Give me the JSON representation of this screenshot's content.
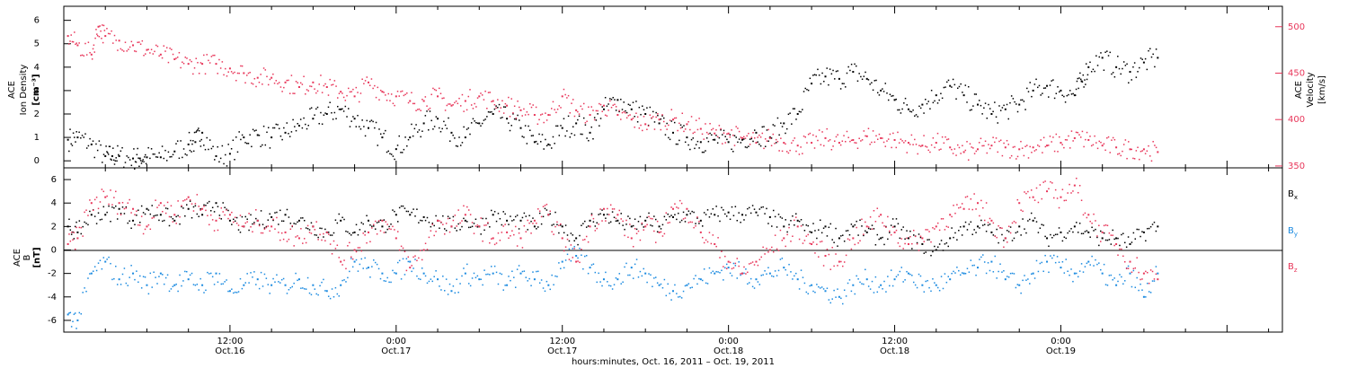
{
  "chart_data": [
    {
      "type": "scatter",
      "panel": "top",
      "ylabel_left": [
        "ACE",
        "Ion Density",
        "[cm⁻³]"
      ],
      "ylabel_right": [
        "ACE",
        "Velocity",
        "[km/s]"
      ],
      "yticks_left": [
        "0",
        "1",
        "2",
        "3",
        "4",
        "5",
        "6"
      ],
      "yticks_right": [
        "350",
        "400",
        "450",
        "500"
      ],
      "ylim_left": [
        -0.3,
        6.6
      ],
      "ylim_right": [
        348,
        522
      ],
      "series": [
        {
          "color": "#000000",
          "axis": "left",
          "x": [
            0.3,
            1.0,
            2.0,
            3.0,
            3.5,
            4.0,
            5.0,
            5.5,
            6.0,
            7.0,
            8.0,
            9.0,
            9.5,
            10.0,
            11.0,
            12.0,
            13.0,
            14.0,
            15.0,
            16.0,
            17.0,
            18.0,
            19.0,
            20.0,
            21.0,
            22.0,
            23.0,
            24.0,
            25.0,
            26.0,
            27.0,
            28.0,
            29.0,
            30.0,
            31.0,
            32.0,
            33.0,
            34.0,
            35.0,
            36.0,
            37.0,
            38.0,
            39.0,
            40.0,
            41.0,
            42.0,
            43.0,
            44.0,
            45.0,
            46.0,
            47.0,
            48.0,
            49.0,
            50.0,
            51.0,
            52.0,
            53.0,
            54.0,
            55.0,
            56.0,
            57.0,
            58.0,
            59.0,
            60.0,
            61.0,
            62.0,
            63.0,
            64.0,
            65.0,
            66.0,
            67.0,
            68.0,
            69.0,
            70.0,
            71.0,
            72.0,
            73.0,
            73.5,
            74.0,
            75.0,
            76.0,
            77.0,
            78.0,
            79.0
          ],
          "y": [
            0.9,
            1.0,
            0.7,
            0.2,
            0.2,
            0.2,
            0.1,
            0.1,
            0.15,
            0.15,
            0.4,
            0.7,
            0.8,
            1.2,
            0.2,
            0.3,
            1.0,
            1.1,
            1.0,
            1.2,
            1.5,
            1.8,
            2.0,
            2.2,
            1.8,
            1.4,
            1.0,
            0.5,
            1.0,
            1.6,
            1.8,
            1.2,
            1.0,
            1.6,
            2.0,
            1.8,
            1.4,
            0.8,
            0.7,
            1.4,
            1.6,
            1.2,
            2.2,
            2.6,
            2.2,
            2.0,
            1.6,
            1.2,
            1.0,
            0.8,
            0.9,
            0.8,
            0.9,
            1.2,
            1.0,
            1.6,
            2.0,
            3.3,
            3.6,
            3.5,
            3.8,
            3.5,
            3.0,
            2.6,
            2.2,
            2.4,
            2.8,
            3.2,
            2.8,
            2.4,
            2.0,
            2.2,
            2.4,
            3.0,
            3.2,
            3.0,
            2.8,
            3.4,
            4.0,
            4.4,
            4.0,
            3.8,
            4.2,
            4.4
          ]
        },
        {
          "color": "#e8365a",
          "axis": "right",
          "x": [
            0.3,
            1.0,
            2.0,
            2.5,
            3.0,
            4.0,
            5.0,
            6.0,
            7.0,
            8.0,
            9.0,
            10.0,
            11.0,
            12.0,
            13.0,
            14.0,
            15.0,
            16.0,
            17.0,
            18.0,
            19.0,
            20.0,
            21.0,
            22.0,
            23.0,
            24.0,
            25.0,
            26.0,
            27.0,
            28.0,
            29.0,
            30.0,
            31.0,
            32.0,
            33.0,
            34.0,
            35.0,
            36.0,
            37.0,
            38.0,
            39.0,
            40.0,
            41.0,
            42.0,
            43.0,
            44.0,
            45.0,
            46.0,
            47.0,
            48.0,
            49.0,
            50.0,
            51.0,
            52.0,
            53.0,
            54.0,
            55.0,
            56.0,
            57.0,
            58.0,
            59.0,
            60.0,
            61.0,
            62.0,
            63.0,
            64.0,
            65.0,
            66.0,
            67.0,
            68.0,
            69.0,
            70.0,
            71.0,
            72.0,
            73.0,
            74.0,
            75.0,
            76.0,
            77.0,
            78.0,
            79.0
          ],
          "y": [
            490,
            480,
            470,
            500,
            490,
            485,
            480,
            475,
            470,
            465,
            460,
            460,
            460,
            455,
            450,
            445,
            445,
            440,
            435,
            440,
            435,
            430,
            425,
            440,
            430,
            425,
            420,
            420,
            425,
            415,
            420,
            425,
            420,
            415,
            410,
            405,
            405,
            425,
            410,
            405,
            415,
            405,
            400,
            395,
            400,
            400,
            395,
            390,
            385,
            385,
            380,
            375,
            380,
            375,
            372,
            375,
            380,
            375,
            378,
            382,
            380,
            378,
            375,
            372,
            375,
            370,
            365,
            368,
            372,
            370,
            368,
            370,
            372,
            375,
            380,
            378,
            372,
            370,
            368,
            368,
            365
          ]
        }
      ]
    },
    {
      "type": "scatter",
      "panel": "bottom",
      "ylabel_left": [
        "ACE",
        "B",
        "[nT]"
      ],
      "yticks_left": [
        "-6",
        "-4",
        "-2",
        "0",
        "2",
        "4",
        "6"
      ],
      "ylim": [
        -7,
        7
      ],
      "legend": [
        {
          "label": "B",
          "sub": "x",
          "color": "#000000"
        },
        {
          "label": "B",
          "sub": "y",
          "color": "#1a8ae0"
        },
        {
          "label": "B",
          "sub": "z",
          "color": "#e8365a"
        }
      ],
      "series": [
        {
          "name": "Bx",
          "color": "#000000",
          "x": [
            0.3,
            1.0,
            2.0,
            3.0,
            4.0,
            5.0,
            6.0,
            7.0,
            8.0,
            9.0,
            10.0,
            11.0,
            12.0,
            13.0,
            14.0,
            15.0,
            16.0,
            17.0,
            18.0,
            19.0,
            20.0,
            21.0,
            22.0,
            23.0,
            24.0,
            25.0,
            26.0,
            27.0,
            28.0,
            29.0,
            30.0,
            31.0,
            32.0,
            33.0,
            34.0,
            35.0,
            36.0,
            37.0,
            38.0,
            39.0,
            40.0,
            41.0,
            42.0,
            43.0,
            44.0,
            45.0,
            46.0,
            47.0,
            48.0,
            49.0,
            50.0,
            51.0,
            52.0,
            53.0,
            54.0,
            55.0,
            56.0,
            57.0,
            58.0,
            59.0,
            60.0,
            61.0,
            62.0,
            63.0,
            64.0,
            65.0,
            66.0,
            67.0,
            68.0,
            69.0,
            70.0,
            71.0,
            72.0,
            73.0,
            74.0,
            75.0,
            76.0,
            77.0,
            78.0,
            79.0
          ],
          "y": [
            2.0,
            1.5,
            3.0,
            3.0,
            3.5,
            2.5,
            3.5,
            3.0,
            2.5,
            3.5,
            3.0,
            4.0,
            2.5,
            2.0,
            2.5,
            2.8,
            3.0,
            2.5,
            2.0,
            1.5,
            2.5,
            1.5,
            2.5,
            2.0,
            3.0,
            3.0,
            2.8,
            2.5,
            2.0,
            2.5,
            2.0,
            3.0,
            2.5,
            2.5,
            2.0,
            3.0,
            2.0,
            1.0,
            2.5,
            3.0,
            2.5,
            2.0,
            2.5,
            2.0,
            2.8,
            3.0,
            2.5,
            3.0,
            3.2,
            3.0,
            3.2,
            2.8,
            2.0,
            2.5,
            1.5,
            2.0,
            1.0,
            2.0,
            1.5,
            1.0,
            2.0,
            1.0,
            0.5,
            0.0,
            1.0,
            2.0,
            2.0,
            1.5,
            1.0,
            2.0,
            2.5,
            1.0,
            1.5,
            2.0,
            1.5,
            1.0,
            1.0,
            0.5,
            1.5,
            2.0
          ]
        },
        {
          "name": "By",
          "color": "#1a8ae0",
          "x": [
            0.3,
            1.0,
            2.0,
            3.0,
            4.0,
            5.0,
            6.0,
            7.0,
            8.0,
            9.0,
            10.0,
            11.0,
            12.0,
            13.0,
            14.0,
            15.0,
            16.0,
            17.0,
            18.0,
            19.0,
            20.0,
            21.0,
            22.0,
            23.0,
            24.0,
            25.0,
            26.0,
            27.0,
            28.0,
            29.0,
            30.0,
            31.0,
            32.0,
            33.0,
            34.0,
            35.0,
            36.0,
            37.0,
            38.0,
            39.0,
            40.0,
            41.0,
            42.0,
            43.0,
            44.0,
            45.0,
            46.0,
            47.0,
            48.0,
            49.0,
            50.0,
            51.0,
            52.0,
            53.0,
            54.0,
            55.0,
            56.0,
            57.0,
            58.0,
            59.0,
            60.0,
            61.0,
            62.0,
            63.0,
            64.0,
            65.0,
            66.0,
            67.0,
            68.0,
            69.0,
            70.0,
            71.0,
            72.0,
            73.0,
            74.0,
            75.0,
            76.0,
            77.0,
            78.0,
            79.0
          ],
          "y": [
            -5.5,
            -6.0,
            -2.0,
            -1.0,
            -2.5,
            -2.0,
            -3.0,
            -2.0,
            -3.0,
            -2.5,
            -3.0,
            -2.0,
            -3.5,
            -3.0,
            -2.5,
            -3.0,
            -3.0,
            -2.5,
            -3.0,
            -3.5,
            -3.0,
            -1.0,
            -1.5,
            -2.0,
            -2.0,
            -1.0,
            -2.0,
            -2.5,
            -3.5,
            -2.0,
            -2.5,
            -2.0,
            -3.0,
            -2.0,
            -2.5,
            -3.0,
            -1.0,
            -0.5,
            -1.5,
            -2.5,
            -2.5,
            -1.5,
            -2.0,
            -3.0,
            -3.5,
            -3.0,
            -2.5,
            -2.0,
            -1.5,
            -2.0,
            -2.5,
            -2.0,
            -1.5,
            -2.5,
            -3.0,
            -3.5,
            -4.0,
            -3.0,
            -2.5,
            -3.0,
            -2.5,
            -2.0,
            -3.0,
            -3.0,
            -2.5,
            -2.0,
            -1.5,
            -1.0,
            -2.5,
            -3.0,
            -2.0,
            -1.0,
            -1.5,
            -2.0,
            -1.0,
            -2.0,
            -3.0,
            -2.0,
            -4.0,
            -2.0
          ]
        },
        {
          "name": "Bz",
          "color": "#e8365a",
          "x": [
            0.3,
            1.0,
            2.0,
            3.0,
            4.0,
            5.0,
            6.0,
            7.0,
            8.0,
            9.0,
            10.0,
            11.0,
            12.0,
            13.0,
            14.0,
            15.0,
            16.0,
            17.0,
            18.0,
            19.0,
            20.0,
            21.0,
            22.0,
            23.0,
            24.0,
            25.0,
            26.0,
            27.0,
            28.0,
            29.0,
            30.0,
            31.0,
            32.0,
            33.0,
            34.0,
            35.0,
            36.0,
            37.0,
            38.0,
            39.0,
            40.0,
            41.0,
            42.0,
            43.0,
            44.0,
            45.0,
            46.0,
            47.0,
            48.0,
            49.0,
            50.0,
            51.0,
            52.0,
            53.0,
            54.0,
            55.0,
            56.0,
            57.0,
            58.0,
            59.0,
            60.0,
            61.0,
            62.0,
            63.0,
            64.0,
            65.0,
            66.0,
            67.0,
            68.0,
            69.0,
            70.0,
            71.0,
            72.0,
            73.0,
            74.0,
            75.0,
            76.0,
            77.0,
            78.0,
            79.0
          ],
          "y": [
            0.5,
            1.0,
            4.0,
            4.5,
            4.0,
            3.5,
            2.0,
            4.0,
            3.0,
            4.5,
            3.5,
            2.5,
            3.0,
            2.0,
            2.5,
            2.0,
            1.5,
            1.0,
            2.0,
            1.5,
            -1.0,
            0.0,
            1.5,
            2.5,
            1.0,
            -1.5,
            0.0,
            2.5,
            2.0,
            3.0,
            2.0,
            1.0,
            1.5,
            1.0,
            2.5,
            3.0,
            1.0,
            -1.0,
            2.0,
            3.5,
            3.0,
            1.0,
            2.0,
            1.5,
            3.5,
            3.5,
            1.5,
            0.5,
            -1.0,
            -2.0,
            -1.0,
            0.0,
            1.0,
            2.0,
            0.5,
            -0.5,
            -1.0,
            1.0,
            2.0,
            3.0,
            1.5,
            0.5,
            1.0,
            2.0,
            3.0,
            3.5,
            4.0,
            2.5,
            1.0,
            4.0,
            4.5,
            5.0,
            4.5,
            5.5,
            3.0,
            1.5,
            0.5,
            -1.0,
            -2.0,
            -2.5
          ]
        }
      ]
    }
  ],
  "x_axis": {
    "xlim": [
      0,
      88
    ],
    "tick_hours": [
      12,
      24,
      36,
      48,
      60,
      72
    ],
    "tick_labels": [
      {
        "time": "12:00",
        "date": "Oct.16"
      },
      {
        "time": "0:00",
        "date": "Oct.17"
      },
      {
        "time": "12:00",
        "date": "Oct.17"
      },
      {
        "time": "0:00",
        "date": "Oct.18"
      },
      {
        "time": "12:00",
        "date": "Oct.18"
      },
      {
        "time": "0:00",
        "date": "Oct.19"
      }
    ],
    "xlabel": "hours:minutes, Oct. 16, 2011 – Oct. 19, 2011"
  },
  "colors": {
    "black": "#000000",
    "red": "#e8365a",
    "blue": "#1a8ae0"
  }
}
